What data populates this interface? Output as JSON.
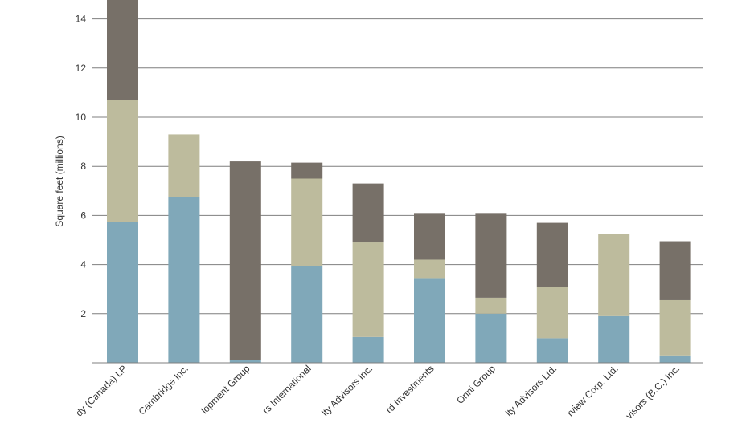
{
  "chart_data": {
    "type": "bar",
    "stacked": true,
    "ylabel": "Square feet (millions)",
    "ylim": [
      0,
      15
    ],
    "yticks": [
      2,
      4,
      6,
      8,
      10,
      12,
      14
    ],
    "grid": true,
    "categories": [
      "Oxford Properties / Ivanhoé Cambridge / Brookfield (Canada) LP",
      "Ivanhoé Cambridge Inc.",
      "Development Group",
      "Colliers International",
      "Realty Advisors Inc.",
      "Oxford Investments",
      "Onni Group",
      "Realty Advisors Ltd.",
      "Bayview Corp. Ltd.",
      "Advisors (B.C.) Inc."
    ],
    "category_labels_visible": [
      "dy (Canada) LP",
      "Cambridge Inc.",
      "lopment Group",
      "rs International",
      "lty Advisors Inc.",
      "rd Investments",
      "Onni Group",
      "lty Advisors Ltd.",
      "rview Corp. Ltd.",
      "visors (B.C.) Inc."
    ],
    "series": [
      {
        "values": [
          5.75,
          6.75,
          0.1,
          3.95,
          1.05,
          3.45,
          2.0,
          1.0,
          1.9,
          0.3
        ]
      },
      {
        "values": [
          4.95,
          2.55,
          0.0,
          3.55,
          3.85,
          0.75,
          0.65,
          2.1,
          3.35,
          2.25
        ]
      },
      {
        "values": [
          4.9,
          0.0,
          8.1,
          0.65,
          2.4,
          1.9,
          3.45,
          2.6,
          0.0,
          2.4
        ]
      }
    ],
    "colors": [
      "#80a8b9",
      "#bdbb9d",
      "#777068"
    ]
  }
}
